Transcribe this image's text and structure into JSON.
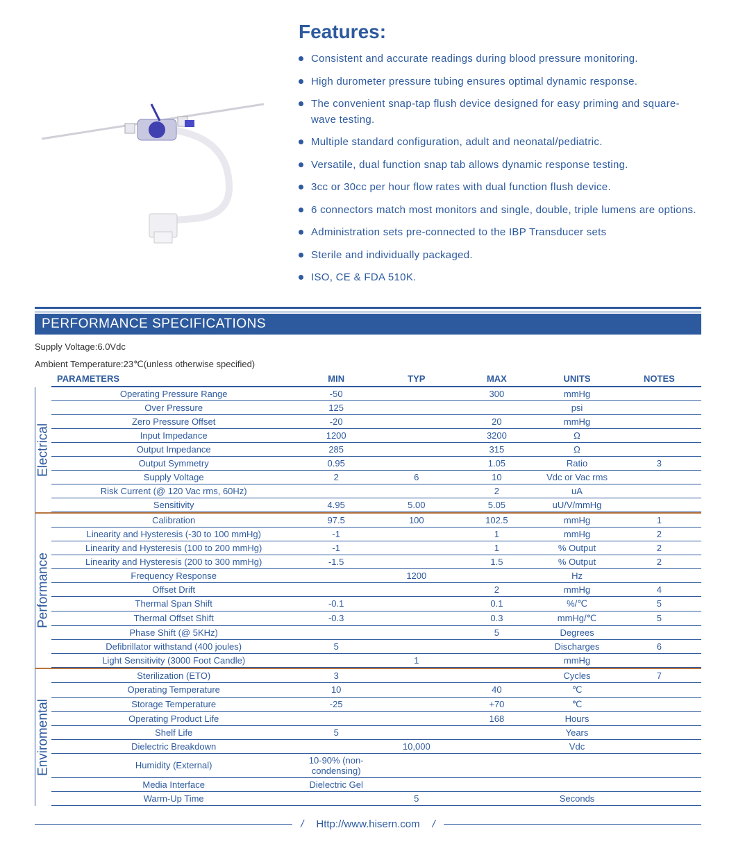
{
  "colors": {
    "primary": "#2d5a9e",
    "accent": "#b8763e",
    "bg": "#ffffff"
  },
  "features": {
    "title": "Features:",
    "items": [
      "Consistent and accurate readings during blood pressure monitoring.",
      "High durometer pressure tubing ensures optimal dynamic response.",
      "The convenient snap-tap flush device designed for easy priming and square-wave testing.",
      "Multiple standard configuration, adult and neonatal/pediatric.",
      "Versatile, dual function snap tab allows dynamic response testing.",
      "3cc or 30cc per hour flow rates with dual function flush device.",
      "6 connectors match most monitors and single, double, triple lumens are options.",
      "Administration sets pre-connected to the IBP Transducer sets",
      "Sterile and individually packaged.",
      "ISO, CE & FDA 510K."
    ]
  },
  "spec": {
    "title": "PERFORMANCE SPECIFICATIONS",
    "meta1": "Supply Voltage:6.0Vdc",
    "meta2": "Ambient Temperature:23℃(unless otherwise specified)",
    "headers": [
      "PARAMETERS",
      "MIN",
      "TYP",
      "MAX",
      "UNITS",
      "NOTES"
    ],
    "sections": [
      {
        "label": "Electrical",
        "rows": [
          {
            "p": "Operating Pressure Range",
            "min": "-50",
            "typ": "",
            "max": "300",
            "u": "mmHg",
            "n": ""
          },
          {
            "p": "Over  Pressure",
            "min": "125",
            "typ": "",
            "max": "",
            "u": "psi",
            "n": ""
          },
          {
            "p": "Zero Pressure Offset",
            "min": "-20",
            "typ": "",
            "max": "20",
            "u": "mmHg",
            "n": ""
          },
          {
            "p": "Input Impedance",
            "min": "1200",
            "typ": "",
            "max": "3200",
            "u": "Ω",
            "n": ""
          },
          {
            "p": "Output Impedance",
            "min": "285",
            "typ": "",
            "max": "315",
            "u": "Ω",
            "n": ""
          },
          {
            "p": "Output Symmetry",
            "min": "0.95",
            "typ": "",
            "max": "1.05",
            "u": "Ratio",
            "n": "3"
          },
          {
            "p": "Supply Voltage",
            "min": "2",
            "typ": "6",
            "max": "10",
            "u": "Vdc or Vac rms",
            "n": ""
          },
          {
            "p": "Risk Current (@ 120 Vac rms, 60Hz)",
            "min": "",
            "typ": "",
            "max": "2",
            "u": "uA",
            "n": ""
          },
          {
            "p": "Sensitivity",
            "min": "4.95",
            "typ": "5.00",
            "max": "5.05",
            "u": "uU/V/mmHg",
            "n": ""
          }
        ]
      },
      {
        "label": "Performance",
        "rows": [
          {
            "p": "Calibration",
            "min": "97.5",
            "typ": "100",
            "max": "102.5",
            "u": "mmHg",
            "n": "1"
          },
          {
            "p": "Linearity and Hysteresis (-30 to 100 mmHg)",
            "min": "-1",
            "typ": "",
            "max": "1",
            "u": "mmHg",
            "n": "2"
          },
          {
            "p": "Linearity and Hysteresis (100 to 200 mmHg)",
            "min": "-1",
            "typ": "",
            "max": "1",
            "u": "% Output",
            "n": "2"
          },
          {
            "p": "Linearity and Hysteresis (200 to 300 mmHg)",
            "min": "-1.5",
            "typ": "",
            "max": "1.5",
            "u": "% Output",
            "n": "2"
          },
          {
            "p": "Frequency Response",
            "min": "",
            "typ": "1200",
            "max": "",
            "u": "Hz",
            "n": ""
          },
          {
            "p": "Offset Drift",
            "min": "",
            "typ": "",
            "max": "2",
            "u": "mmHg",
            "n": "4"
          },
          {
            "p": "Thermal Span Shift",
            "min": "-0.1",
            "typ": "",
            "max": "0.1",
            "u": "%/℃",
            "n": "5"
          },
          {
            "p": "Thermal Offset Shift",
            "min": "-0.3",
            "typ": "",
            "max": "0.3",
            "u": "mmHg/℃",
            "n": "5"
          },
          {
            "p": "Phase Shift (@ 5KHz)",
            "min": "",
            "typ": "",
            "max": "5",
            "u": "Degrees",
            "n": ""
          },
          {
            "p": "Defibrillator withstand (400 joules)",
            "min": "5",
            "typ": "",
            "max": "",
            "u": "Discharges",
            "n": "6"
          },
          {
            "p": "Light Sensitivity (3000 Foot Candle)",
            "min": "",
            "typ": "1",
            "max": "",
            "u": "mmHg",
            "n": ""
          }
        ]
      },
      {
        "label": "Enviromental",
        "rows": [
          {
            "p": "Sterilization (ETO)",
            "min": "3",
            "typ": "",
            "max": "",
            "u": "Cycles",
            "n": "7"
          },
          {
            "p": "Operating Temperature",
            "min": "10",
            "typ": "",
            "max": "40",
            "u": "℃",
            "n": ""
          },
          {
            "p": "Storage Temperature",
            "min": "-25",
            "typ": "",
            "max": "+70",
            "u": "℃",
            "n": ""
          },
          {
            "p": "Operating Product Life",
            "min": "",
            "typ": "",
            "max": "168",
            "u": "Hours",
            "n": ""
          },
          {
            "p": "Shelf Life",
            "min": "5",
            "typ": "",
            "max": "",
            "u": "Years",
            "n": ""
          },
          {
            "p": "Dielectric Breakdown",
            "min": "",
            "typ": "10,000",
            "max": "",
            "u": "Vdc",
            "n": ""
          },
          {
            "p": "Humidity (External)",
            "min": "10-90% (non-condensing)",
            "typ": "",
            "max": "",
            "u": "",
            "n": ""
          },
          {
            "p": "Media Interface",
            "min": "Dielectric Gel",
            "typ": "",
            "max": "",
            "u": "",
            "n": ""
          },
          {
            "p": "Warm-Up Time",
            "min": "",
            "typ": "5",
            "max": "",
            "u": "Seconds",
            "n": ""
          }
        ]
      }
    ]
  },
  "footer": {
    "url": "Http://www.hisern.com"
  }
}
